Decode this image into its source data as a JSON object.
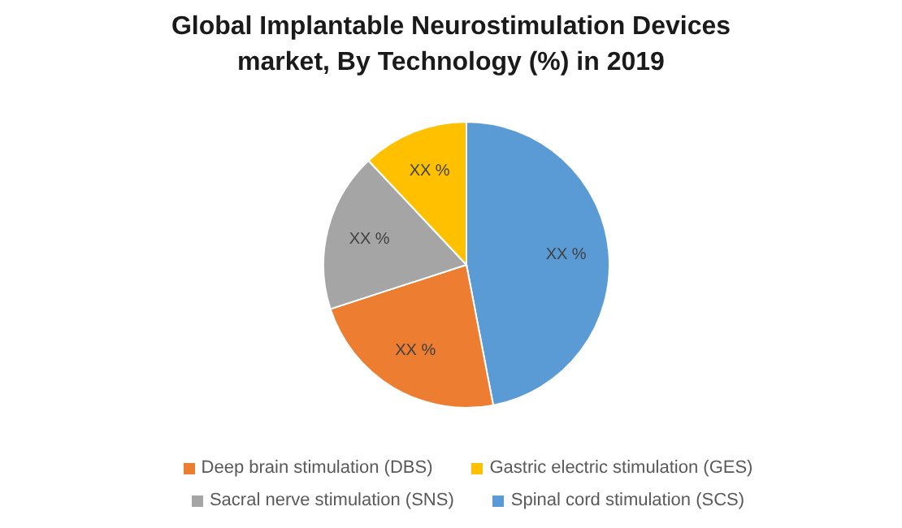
{
  "chart_data": {
    "type": "pie",
    "title": "Global Implantable Neurostimulation Devices market, By Technology (%) in 2019",
    "categories": [
      "Spinal cord stimulation (SCS)",
      "Deep brain stimulation (DBS)",
      "Sacral nerve stimulation (SNS)",
      "Gastric electric stimulation (GES)"
    ],
    "values": [
      47,
      23,
      18,
      12
    ],
    "colors": [
      "#5b9bd5",
      "#ed7d31",
      "#a5a5a5",
      "#ffc000"
    ],
    "value_labels": [
      "XX %",
      "XX %",
      "XX %",
      "XX %"
    ],
    "legend": "bottom"
  }
}
